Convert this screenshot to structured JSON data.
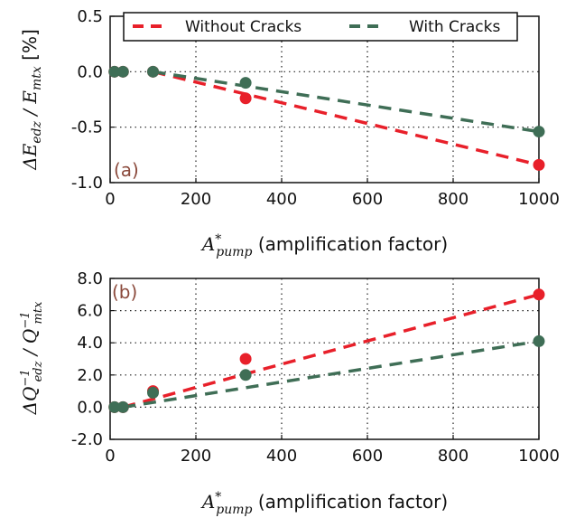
{
  "colors": {
    "without_cracks": "#e8202a",
    "with_cracks": "#3f6e56"
  },
  "legend": {
    "without_cracks": "Without Cracks",
    "with_cracks": "With Cracks",
    "placement": "top"
  },
  "chart_data": [
    {
      "panel": "(a)",
      "type": "scatter",
      "xlabel": "A*pump (amplification factor)",
      "ylabel": "ΔEedz / Emtx [%]",
      "xlim": [
        0,
        1000
      ],
      "ylim": [
        -1.0,
        0.5
      ],
      "xticks": [
        "0",
        "200",
        "400",
        "600",
        "800",
        "1000"
      ],
      "yticks": [
        "0.5",
        "0.0",
        "-0.5",
        "-1.0"
      ],
      "grid": true,
      "series": [
        {
          "name": "Without Cracks",
          "color": "without_cracks",
          "points": [
            [
              10,
              0.0
            ],
            [
              30,
              0.0
            ],
            [
              100,
              0.0
            ],
            [
              316,
              -0.24
            ],
            [
              1000,
              -0.84
            ]
          ],
          "fit": [
            [
              100,
              0.0
            ],
            [
              1000,
              -0.84
            ]
          ]
        },
        {
          "name": "With Cracks",
          "color": "with_cracks",
          "points": [
            [
              10,
              0.0
            ],
            [
              30,
              0.0
            ],
            [
              100,
              0.0
            ],
            [
              316,
              -0.1
            ],
            [
              1000,
              -0.54
            ]
          ],
          "fit": [
            [
              100,
              0.0
            ],
            [
              1000,
              -0.54
            ]
          ]
        }
      ]
    },
    {
      "panel": "(b)",
      "type": "scatter",
      "xlabel": "A*pump (amplification factor)",
      "ylabel": "ΔQ⁻¹edz / Q⁻¹mtx",
      "xlim": [
        0,
        1000
      ],
      "ylim": [
        -2.0,
        8.0
      ],
      "xticks": [
        "0",
        "200",
        "400",
        "600",
        "800",
        "1000"
      ],
      "yticks": [
        "8.0",
        "6.0",
        "4.0",
        "2.0",
        "0.0",
        "-2.0"
      ],
      "grid": true,
      "series": [
        {
          "name": "Without Cracks",
          "color": "without_cracks",
          "points": [
            [
              10,
              0.0
            ],
            [
              30,
              0.0
            ],
            [
              100,
              1.0
            ],
            [
              316,
              3.0
            ],
            [
              1000,
              7.0
            ]
          ],
          "fit": [
            [
              30,
              0.0
            ],
            [
              1000,
              7.0
            ]
          ]
        },
        {
          "name": "With Cracks",
          "color": "with_cracks",
          "points": [
            [
              10,
              0.0
            ],
            [
              30,
              0.0
            ],
            [
              100,
              0.9
            ],
            [
              316,
              2.0
            ],
            [
              1000,
              4.1
            ]
          ],
          "fit": [
            [
              30,
              0.0
            ],
            [
              1000,
              4.1
            ]
          ]
        }
      ]
    }
  ]
}
